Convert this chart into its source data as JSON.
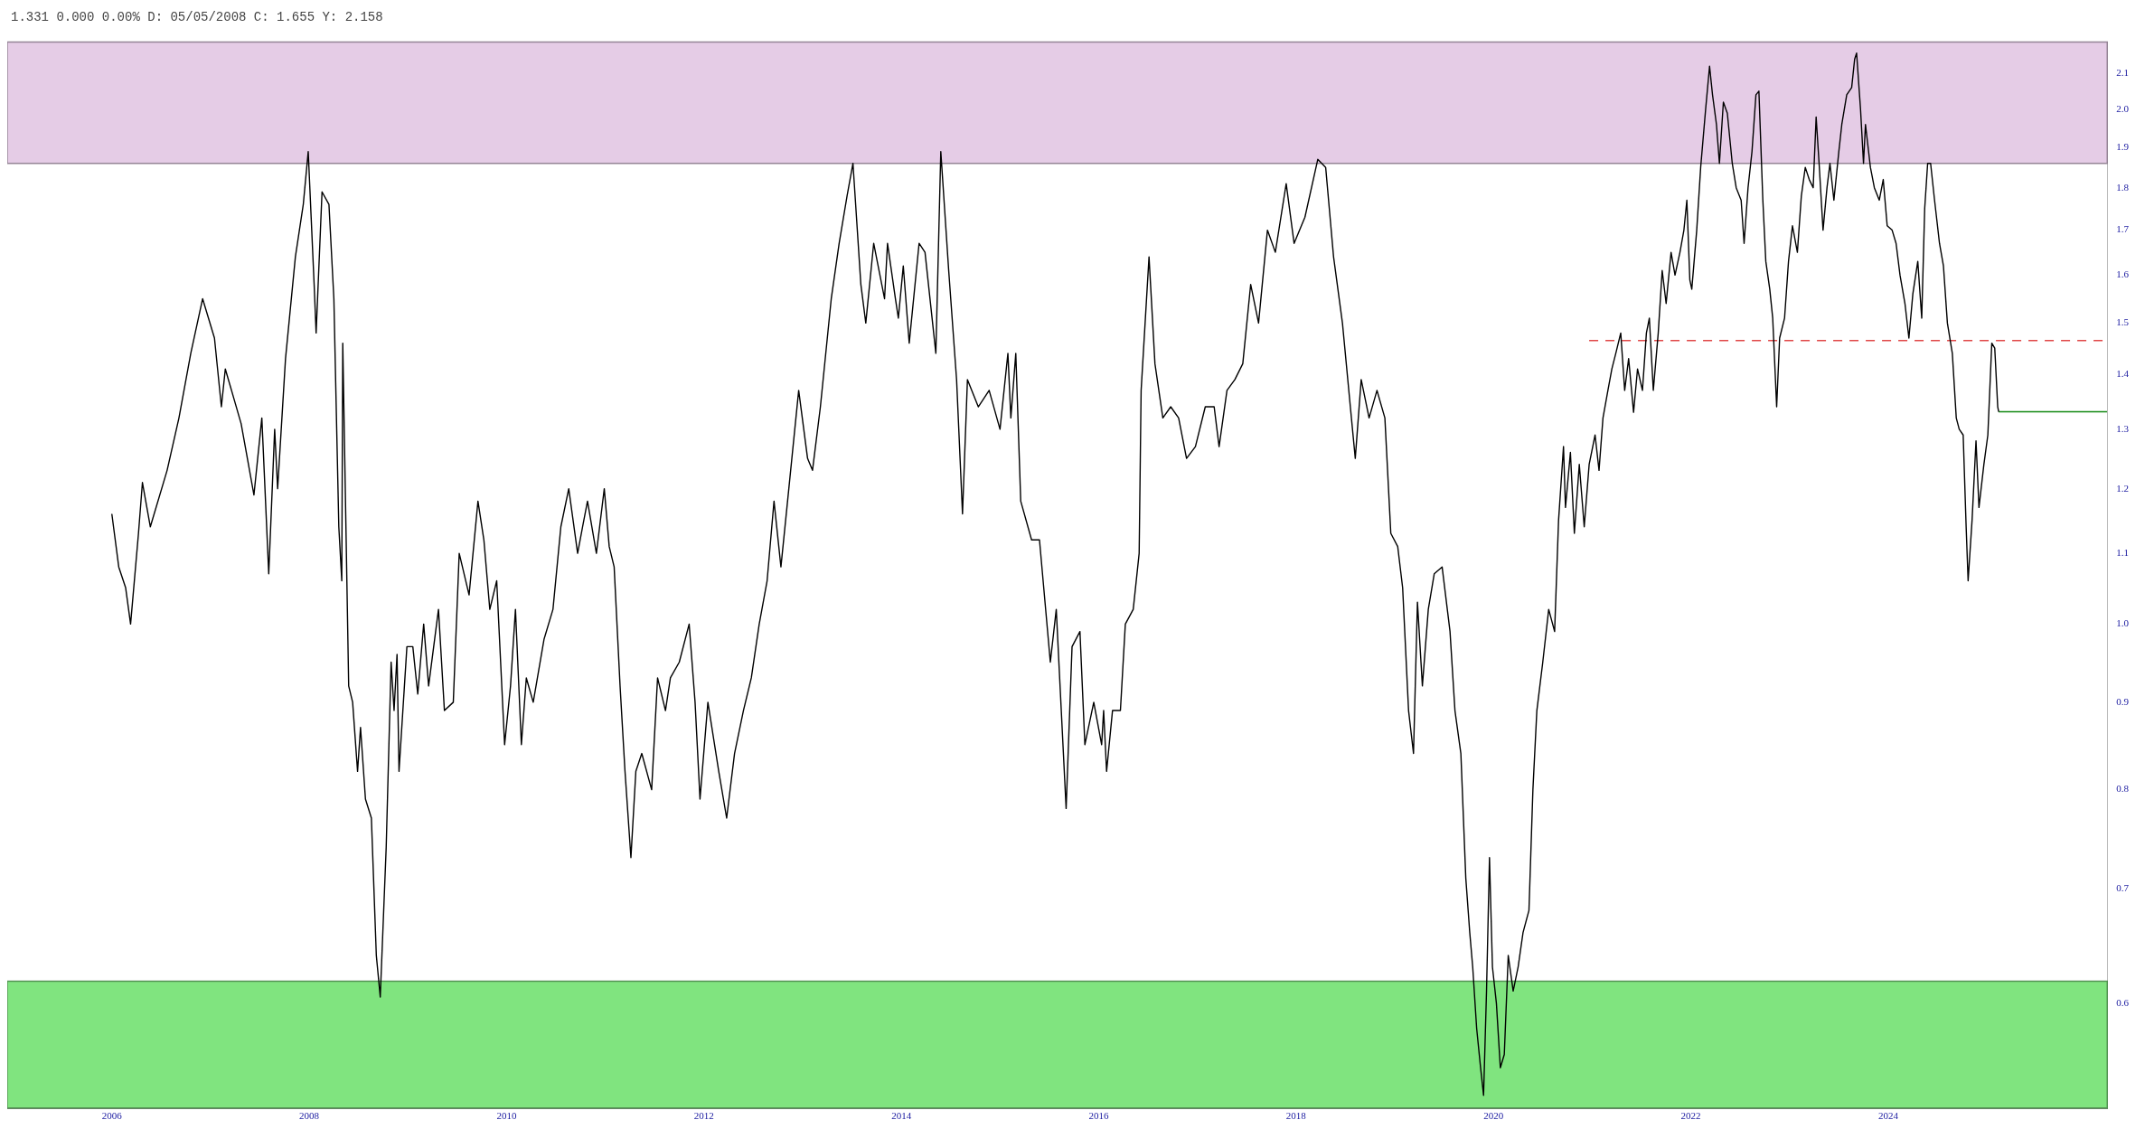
{
  "chart_data": {
    "type": "line",
    "title": "1.331 0.000 0.00% D: 05/05/2008 C: 1.655 Y: 2.158",
    "log": "y",
    "xlim": [
      2004.94,
      2026.22
    ],
    "xticks": [
      2006,
      2008,
      2010,
      2012,
      2014,
      2016,
      2018,
      2020,
      2022,
      2024
    ],
    "ylim": [
      0.521,
      2.19
    ],
    "yticks": [
      0.6,
      0.7,
      0.8,
      0.9,
      {
        "value": 1.0,
        "label": "1.0"
      },
      1.1,
      1.2,
      1.3,
      1.4,
      1.5,
      1.6,
      1.7,
      1.8,
      1.9,
      {
        "value": 2.0,
        "label": "2.0"
      },
      2.1
    ],
    "bands": [
      {
        "axis": "y",
        "from": 1.86,
        "to": 2.19,
        "color": "#e5cce6"
      },
      {
        "axis": "y",
        "from": 0.521,
        "to": 0.618,
        "color": "#80e47f"
      }
    ],
    "series": [
      {
        "color": "#000000",
        "x": [
          2006.0,
          2006.07,
          2006.14,
          2006.19,
          2006.27,
          2006.31,
          2006.39,
          2006.56,
          2006.68,
          2006.8,
          2006.92,
          2007.04,
          2007.11,
          2007.15,
          2007.31,
          2007.44,
          2007.52,
          2007.59,
          2007.65,
          2007.68,
          2007.76,
          2007.86,
          2007.94,
          2007.99,
          2008.05,
          2008.07,
          2008.13,
          2008.2,
          2008.25,
          2008.3,
          2008.33,
          2008.34,
          2008.4,
          2008.44,
          2008.49,
          2008.52,
          2008.57,
          2008.63,
          2008.68,
          2008.72,
          2008.78,
          2008.83,
          2008.86,
          2008.89,
          2008.91,
          2008.99,
          2009.05,
          2009.1,
          2009.16,
          2009.21,
          2009.31,
          2009.37,
          2009.46,
          2009.52,
          2009.62,
          2009.71,
          2009.77,
          2009.83,
          2009.9,
          2009.98,
          2010.04,
          2010.09,
          2010.15,
          2010.2,
          2010.27,
          2010.38,
          2010.47,
          2010.55,
          2010.63,
          2010.72,
          2010.77,
          2010.82,
          2010.91,
          2010.99,
          2011.04,
          2011.09,
          2011.15,
          2011.2,
          2011.26,
          2011.31,
          2011.37,
          2011.47,
          2011.53,
          2011.61,
          2011.66,
          2011.75,
          2011.85,
          2011.91,
          2011.96,
          2012.04,
          2012.15,
          2012.23,
          2012.31,
          2012.4,
          2012.48,
          2012.56,
          2012.64,
          2012.71,
          2012.78,
          2012.86,
          2012.96,
          2013.05,
          2013.1,
          2013.18,
          2013.29,
          2013.37,
          2013.45,
          2013.51,
          2013.59,
          2013.64,
          2013.72,
          2013.83,
          2013.86,
          2013.94,
          2013.97,
          2014.02,
          2014.08,
          2014.18,
          2014.24,
          2014.35,
          2014.4,
          2014.48,
          2014.56,
          2014.62,
          2014.67,
          2014.78,
          2014.89,
          2015.0,
          2015.08,
          2015.11,
          2015.16,
          2015.21,
          2015.32,
          2015.4,
          2015.51,
          2015.57,
          2015.67,
          2015.73,
          2015.81,
          2015.86,
          2015.95,
          2016.03,
          2016.05,
          2016.08,
          2016.14,
          2016.22,
          2016.27,
          2016.35,
          2016.41,
          2016.43,
          2016.51,
          2016.57,
          2016.65,
          2016.73,
          2016.81,
          2016.89,
          2016.98,
          2017.08,
          2017.17,
          2017.22,
          2017.3,
          2017.38,
          2017.46,
          2017.54,
          2017.62,
          2017.71,
          2017.79,
          2017.9,
          2017.98,
          2018.09,
          2018.22,
          2018.3,
          2018.38,
          2018.47,
          2018.55,
          2018.6,
          2018.66,
          2018.74,
          2018.82,
          2018.9,
          2018.96,
          2019.03,
          2019.08,
          2019.14,
          2019.19,
          2019.23,
          2019.28,
          2019.34,
          2019.4,
          2019.48,
          2019.56,
          2019.61,
          2019.67,
          2019.72,
          2019.76,
          2019.79,
          2019.83,
          2019.87,
          2019.9,
          2019.93,
          2019.96,
          2019.99,
          2020.03,
          2020.07,
          2020.11,
          2020.15,
          2020.2,
          2020.25,
          2020.3,
          2020.36,
          2020.4,
          2020.44,
          2020.5,
          2020.56,
          2020.62,
          2020.66,
          2020.71,
          2020.73,
          2020.78,
          2020.82,
          2020.87,
          2020.92,
          2020.97,
          2021.03,
          2021.07,
          2021.11,
          2021.16,
          2021.2,
          2021.24,
          2021.29,
          2021.33,
          2021.37,
          2021.42,
          2021.46,
          2021.51,
          2021.55,
          2021.58,
          2021.62,
          2021.67,
          2021.71,
          2021.75,
          2021.8,
          2021.84,
          2021.89,
          2021.93,
          2021.96,
          2021.99,
          2022.01,
          2022.06,
          2022.1,
          2022.15,
          2022.19,
          2022.22,
          2022.26,
          2022.29,
          2022.33,
          2022.37,
          2022.42,
          2022.46,
          2022.51,
          2022.54,
          2022.58,
          2022.62,
          2022.66,
          2022.69,
          2022.73,
          2022.76,
          2022.8,
          2022.83,
          2022.87,
          2022.9,
          2022.95,
          2022.99,
          2023.03,
          2023.08,
          2023.12,
          2023.16,
          2023.2,
          2023.24,
          2023.27,
          2023.3,
          2023.34,
          2023.38,
          2023.41,
          2023.45,
          2023.5,
          2023.53,
          2023.58,
          2023.63,
          2023.66,
          2023.68,
          2023.72,
          2023.75,
          2023.77,
          2023.82,
          2023.86,
          2023.91,
          2023.95,
          2023.99,
          2024.04,
          2024.08,
          2024.12,
          2024.17,
          2024.21,
          2024.25,
          2024.3,
          2024.34,
          2024.37,
          2024.4,
          2024.43,
          2024.47,
          2024.52,
          2024.56,
          2024.6,
          2024.65,
          2024.69,
          2024.72,
          2024.76,
          2024.79,
          2024.81,
          2024.85,
          2024.89,
          2024.92,
          2024.97,
          2025.01,
          2025.05,
          2025.08,
          2025.11,
          2025.12
        ],
        "values": [
          1.16,
          1.08,
          1.05,
          1.0,
          1.13,
          1.21,
          1.14,
          1.23,
          1.32,
          1.44,
          1.55,
          1.47,
          1.34,
          1.41,
          1.31,
          1.19,
          1.32,
          1.07,
          1.3,
          1.2,
          1.43,
          1.64,
          1.76,
          1.89,
          1.58,
          1.48,
          1.79,
          1.76,
          1.55,
          1.14,
          1.06,
          1.46,
          0.92,
          0.9,
          0.82,
          0.87,
          0.79,
          0.77,
          0.64,
          0.605,
          0.74,
          0.95,
          0.89,
          0.96,
          0.82,
          0.97,
          0.97,
          0.91,
          1.0,
          0.92,
          1.02,
          0.89,
          0.9,
          1.1,
          1.04,
          1.18,
          1.12,
          1.02,
          1.06,
          0.85,
          0.92,
          1.02,
          0.85,
          0.93,
          0.9,
          0.98,
          1.02,
          1.14,
          1.2,
          1.1,
          1.14,
          1.18,
          1.1,
          1.2,
          1.11,
          1.08,
          0.92,
          0.82,
          0.73,
          0.82,
          0.84,
          0.8,
          0.93,
          0.89,
          0.93,
          0.95,
          1.0,
          0.9,
          0.79,
          0.9,
          0.82,
          0.77,
          0.84,
          0.89,
          0.93,
          1.0,
          1.06,
          1.18,
          1.08,
          1.2,
          1.37,
          1.25,
          1.23,
          1.34,
          1.55,
          1.67,
          1.78,
          1.86,
          1.58,
          1.5,
          1.67,
          1.55,
          1.67,
          1.55,
          1.51,
          1.62,
          1.46,
          1.67,
          1.65,
          1.44,
          1.89,
          1.61,
          1.39,
          1.16,
          1.39,
          1.34,
          1.37,
          1.3,
          1.44,
          1.32,
          1.44,
          1.18,
          1.12,
          1.12,
          0.95,
          1.02,
          0.78,
          0.97,
          0.99,
          0.85,
          0.9,
          0.85,
          0.89,
          0.82,
          0.89,
          0.89,
          1.0,
          1.02,
          1.1,
          1.37,
          1.64,
          1.42,
          1.32,
          1.34,
          1.32,
          1.25,
          1.27,
          1.34,
          1.34,
          1.27,
          1.37,
          1.39,
          1.42,
          1.58,
          1.5,
          1.7,
          1.65,
          1.81,
          1.67,
          1.73,
          1.87,
          1.85,
          1.64,
          1.5,
          1.34,
          1.25,
          1.39,
          1.32,
          1.37,
          1.32,
          1.13,
          1.11,
          1.05,
          0.89,
          0.84,
          1.03,
          0.92,
          1.02,
          1.07,
          1.08,
          0.99,
          0.89,
          0.84,
          0.71,
          0.66,
          0.63,
          0.58,
          0.55,
          0.53,
          0.61,
          0.73,
          0.63,
          0.6,
          0.55,
          0.56,
          0.64,
          0.61,
          0.63,
          0.66,
          0.68,
          0.8,
          0.89,
          0.95,
          1.02,
          0.99,
          1.15,
          1.27,
          1.17,
          1.26,
          1.13,
          1.24,
          1.14,
          1.24,
          1.29,
          1.23,
          1.32,
          1.37,
          1.41,
          1.44,
          1.48,
          1.37,
          1.43,
          1.33,
          1.41,
          1.37,
          1.48,
          1.51,
          1.37,
          1.48,
          1.61,
          1.54,
          1.65,
          1.6,
          1.65,
          1.7,
          1.77,
          1.59,
          1.57,
          1.7,
          1.85,
          2.0,
          2.12,
          2.04,
          1.96,
          1.86,
          2.02,
          1.99,
          1.86,
          1.8,
          1.77,
          1.67,
          1.8,
          1.89,
          2.04,
          2.05,
          1.77,
          1.63,
          1.57,
          1.51,
          1.34,
          1.47,
          1.51,
          1.63,
          1.71,
          1.65,
          1.78,
          1.85,
          1.82,
          1.8,
          1.98,
          1.86,
          1.7,
          1.8,
          1.86,
          1.77,
          1.89,
          1.96,
          2.04,
          2.06,
          2.14,
          2.158,
          2.0,
          1.86,
          1.96,
          1.85,
          1.8,
          1.77,
          1.82,
          1.71,
          1.7,
          1.67,
          1.6,
          1.54,
          1.47,
          1.56,
          1.63,
          1.51,
          1.75,
          1.86,
          1.86,
          1.77,
          1.67,
          1.62,
          1.5,
          1.44,
          1.32,
          1.3,
          1.29,
          1.14,
          1.06,
          1.15,
          1.28,
          1.17,
          1.24,
          1.29,
          1.46,
          1.45,
          1.34,
          1.331
        ]
      },
      {
        "type": "line",
        "color": "#e04848",
        "line_style": "dashed",
        "x": [
          2020.97,
          2026.22
        ],
        "values": [
          1.465,
          1.465
        ]
      },
      {
        "type": "line",
        "color": "#118811",
        "x": [
          2025.12,
          2026.22
        ],
        "values": [
          1.331,
          1.331
        ]
      }
    ]
  }
}
